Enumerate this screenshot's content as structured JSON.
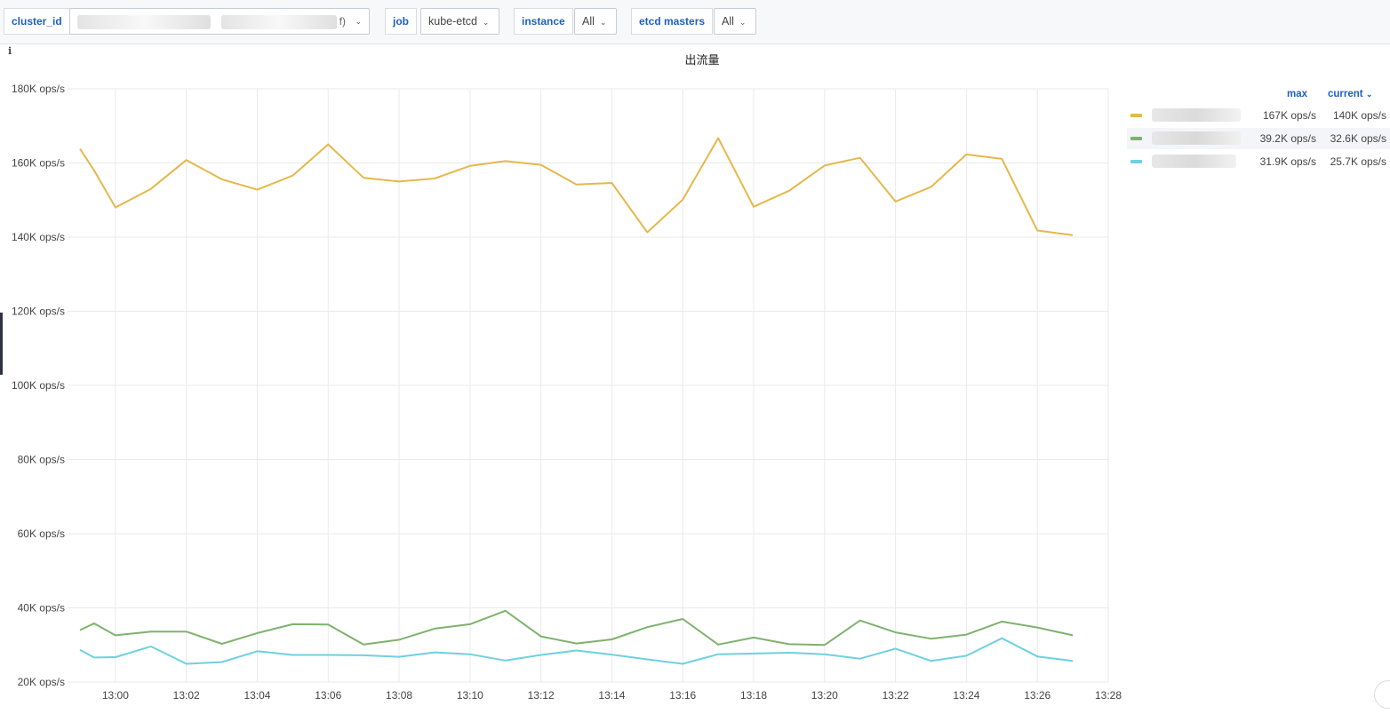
{
  "variables": [
    {
      "label": "cluster_id",
      "value_tail": "f)"
    },
    {
      "label": "job",
      "value": "kube-etcd"
    },
    {
      "label": "instance",
      "value": "All"
    },
    {
      "label": "etcd masters",
      "value": "All"
    }
  ],
  "panel": {
    "title": "出流量",
    "info_icon": "info-icon"
  },
  "legend": {
    "col_max": "max",
    "col_current": "current",
    "sort_icon": "chevron-down-icon",
    "rows": [
      {
        "max": "167K ops/s",
        "current": "140K ops/s"
      },
      {
        "max": "39.2K ops/s",
        "current": "32.6K ops/s"
      },
      {
        "max": "31.9K ops/s",
        "current": "25.7K ops/s"
      }
    ]
  },
  "chart_data": {
    "type": "line",
    "title": "出流量",
    "x_tick_labels": [
      "13:00",
      "13:02",
      "13:04",
      "13:06",
      "13:08",
      "13:10",
      "13:12",
      "13:14",
      "13:16",
      "13:18",
      "13:20",
      "13:22",
      "13:24",
      "13:26",
      "13:28"
    ],
    "y_tick_labels": [
      "20K ops/s",
      "40K ops/s",
      "60K ops/s",
      "80K ops/s",
      "100K ops/s",
      "120K ops/s",
      "140K ops/s",
      "160K ops/s",
      "180K ops/s"
    ],
    "ylim": [
      20000,
      180000
    ],
    "x_range_minutes": [
      "12:59",
      "13:28"
    ],
    "grid": true,
    "legend_placement": "right",
    "x": [
      "12:59",
      "12:59",
      "13:00",
      "13:01",
      "13:02",
      "13:03",
      "13:04",
      "13:05",
      "13:06",
      "13:07",
      "13:08",
      "13:09",
      "13:10",
      "13:11",
      "13:12",
      "13:13",
      "13:14",
      "13:15",
      "13:16",
      "13:17",
      "13:18",
      "13:19",
      "13:20",
      "13:21",
      "13:22",
      "13:23",
      "13:24",
      "13:25",
      "13:26",
      "13:27"
    ],
    "x_minutes": [
      -1,
      -0.6,
      0,
      1,
      2,
      3,
      4,
      5,
      6,
      7,
      8,
      9,
      10,
      11,
      12,
      13,
      14,
      15,
      16,
      17,
      18,
      19,
      20,
      21,
      22,
      23,
      24,
      25,
      26,
      27
    ],
    "series": [
      {
        "color": "#e5b84b",
        "values": [
          163800,
          158000,
          148000,
          153000,
          160800,
          155600,
          152800,
          156600,
          165000,
          156000,
          155000,
          155800,
          159200,
          160500,
          159500,
          154200,
          154600,
          141300,
          150100,
          166700,
          148200,
          152500,
          159300,
          161400,
          149600,
          153500,
          162300,
          161100,
          141800,
          140500
        ]
      },
      {
        "color": "#7eb26d",
        "values": [
          34000,
          35800,
          32600,
          33600,
          33600,
          30300,
          33200,
          35600,
          35500,
          30100,
          31400,
          34400,
          35600,
          39200,
          32300,
          30400,
          31500,
          34800,
          37000,
          30100,
          32000,
          30200,
          30000,
          36600,
          33400,
          31700,
          32800,
          36300,
          34700,
          32600
        ]
      },
      {
        "color": "#6ed0e0",
        "values": [
          28700,
          26600,
          26700,
          29600,
          24900,
          25400,
          28300,
          27300,
          27300,
          27200,
          26800,
          28000,
          27500,
          25800,
          27300,
          28500,
          27400,
          26100,
          24900,
          27500,
          27700,
          27900,
          27500,
          26300,
          29000,
          25700,
          27100,
          31800,
          26900,
          25700
        ]
      }
    ]
  }
}
